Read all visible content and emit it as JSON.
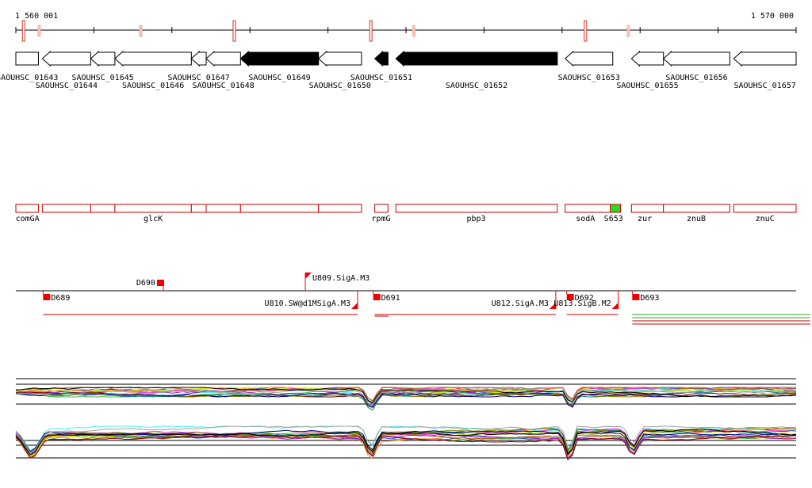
{
  "ruler": {
    "start_label": "1 560 001",
    "end_label": "1 570 000",
    "start": 1560001,
    "end": 1570000,
    "marks": [
      1560100,
      1560300,
      1561600,
      1562800,
      1564550,
      1565100,
      1567300,
      1567850
    ]
  },
  "locus_tags": [
    {
      "id": "SAOUHSC_01643",
      "label": "SAOUHSC_01643",
      "start": 1560001,
      "end": 1560290,
      "dir": "none",
      "fill": "#ffffff"
    },
    {
      "id": "SAOUHSC_01644",
      "label": "SAOUHSC_01644",
      "start": 1560340,
      "end": 1560960,
      "dir": "left",
      "fill": "#ffffff"
    },
    {
      "id": "SAOUHSC_01645",
      "label": "SAOUHSC_01645",
      "start": 1560960,
      "end": 1561270,
      "dir": "left",
      "fill": "#ffffff"
    },
    {
      "id": "SAOUHSC_01646",
      "label": "SAOUHSC_01646",
      "start": 1561270,
      "end": 1562250,
      "dir": "left",
      "fill": "#ffffff"
    },
    {
      "id": "SAOUHSC_01647",
      "label": "SAOUHSC_01647",
      "start": 1562250,
      "end": 1562440,
      "dir": "left",
      "fill": "#ffffff"
    },
    {
      "id": "SAOUHSC_01648",
      "label": "SAOUHSC_01648",
      "start": 1562440,
      "end": 1562880,
      "dir": "left",
      "fill": "#ffffff"
    },
    {
      "id": "SAOUHSC_01649",
      "label": "SAOUHSC_01649",
      "start": 1562880,
      "end": 1563880,
      "dir": "left",
      "fill": "#000000"
    },
    {
      "id": "SAOUHSC_01650",
      "label": "SAOUHSC_01650",
      "start": 1563880,
      "end": 1564430,
      "dir": "left",
      "fill": "#ffffff"
    },
    {
      "id": "SAOUHSC_01651",
      "label": "SAOUHSC_01651",
      "start": 1564600,
      "end": 1564770,
      "dir": "left",
      "fill": "#000000"
    },
    {
      "id": "SAOUHSC_01652",
      "label": "SAOUHSC_01652",
      "start": 1564870,
      "end": 1566940,
      "dir": "left",
      "fill": "#000000"
    },
    {
      "id": "SAOUHSC_01653",
      "label": "SAOUHSC_01653",
      "start": 1567040,
      "end": 1567650,
      "dir": "left",
      "fill": "#ffffff"
    },
    {
      "id": "SAOUHSC_01655",
      "label": "SAOUHSC_01655",
      "start": 1567890,
      "end": 1568300,
      "dir": "left",
      "fill": "#ffffff"
    },
    {
      "id": "SAOUHSC_01656",
      "label": "SAOUHSC_01656",
      "start": 1568300,
      "end": 1569150,
      "dir": "left",
      "fill": "#ffffff"
    },
    {
      "id": "SAOUHSC_01657",
      "label": "SAOUHSC_01657",
      "start": 1569200,
      "end": 1570000,
      "dir": "left",
      "fill": "#ffffff"
    }
  ],
  "genes": [
    {
      "label": "comGA",
      "start": 1560001,
      "end": 1560290,
      "fill": "#ffffff",
      "label_at": 1560150
    },
    {
      "label": "",
      "start": 1560340,
      "end": 1560960,
      "fill": "#ffffff"
    },
    {
      "label": "",
      "start": 1560960,
      "end": 1561270,
      "fill": "#ffffff"
    },
    {
      "label": "glcK",
      "start": 1561270,
      "end": 1562250,
      "fill": "#ffffff",
      "label_at": 1561760
    },
    {
      "label": "",
      "start": 1562250,
      "end": 1562440,
      "fill": "#ffffff"
    },
    {
      "label": "",
      "start": 1562440,
      "end": 1562880,
      "fill": "#ffffff"
    },
    {
      "label": "",
      "start": 1562880,
      "end": 1563880,
      "fill": "#ffffff"
    },
    {
      "label": "",
      "start": 1563880,
      "end": 1564430,
      "fill": "#ffffff"
    },
    {
      "label": "rpmG",
      "start": 1564600,
      "end": 1564770,
      "fill": "#ffffff",
      "label_at": 1564680
    },
    {
      "label": "pbp3",
      "start": 1564870,
      "end": 1566940,
      "fill": "#ffffff",
      "label_at": 1565900
    },
    {
      "label": "sodA",
      "start": 1567040,
      "end": 1567620,
      "fill": "#ffffff",
      "label_at": 1567300
    },
    {
      "label": "S653",
      "start": 1567620,
      "end": 1567750,
      "fill": "#22dd22",
      "label_at": 1567660
    },
    {
      "label": "zur",
      "start": 1567890,
      "end": 1568300,
      "fill": "#ffffff",
      "label_at": 1568060
    },
    {
      "label": "znuB",
      "start": 1568300,
      "end": 1569150,
      "fill": "#ffffff",
      "label_at": 1568720
    },
    {
      "label": "znuC",
      "start": 1569200,
      "end": 1570000,
      "fill": "#ffffff",
      "label_at": 1569600
    }
  ],
  "features": [
    {
      "label": "D689",
      "pos": 1560350,
      "side": "below",
      "type": "block"
    },
    {
      "label": "D690",
      "pos": 1561850,
      "side": "above",
      "type": "block"
    },
    {
      "label": "U809.SigA.M3",
      "pos": 1563710,
      "side": "above",
      "type": "flag"
    },
    {
      "label": "U810.SW@d1MSigA.M3",
      "pos": 1564380,
      "side": "below",
      "type": "flag"
    },
    {
      "label": "D691",
      "pos": 1564580,
      "side": "below",
      "type": "block"
    },
    {
      "label": "U812.SigA.M3",
      "pos": 1566920,
      "side": "below",
      "type": "flag"
    },
    {
      "label": "D692",
      "pos": 1567060,
      "side": "below",
      "type": "block"
    },
    {
      "label": "U813.SigB.M2",
      "pos": 1567720,
      "side": "below",
      "type": "flag"
    },
    {
      "label": "D693",
      "pos": 1567900,
      "side": "below",
      "type": "block"
    }
  ],
  "transcripts": [
    {
      "start": 1560350,
      "end": 1564380,
      "color": "#cc0000"
    },
    {
      "start": 1564600,
      "end": 1564780,
      "color": "#cc0000"
    },
    {
      "start": 1564600,
      "end": 1566920,
      "color": "#cc0000"
    },
    {
      "start": 1567060,
      "end": 1567720,
      "color": "#cc0000"
    },
    {
      "start": 1567900,
      "end": 1570180,
      "color": "#22aa22"
    },
    {
      "start": 1567900,
      "end": 1570180,
      "color": "#22aa22"
    },
    {
      "start": 1567900,
      "end": 1570180,
      "color": "#cc0000"
    },
    {
      "start": 1567900,
      "end": 1570180,
      "color": "#cc0000"
    }
  ],
  "expression_palette": [
    "#e6194b",
    "#3cb44b",
    "#ffe119",
    "#4363d8",
    "#f58231",
    "#911eb4",
    "#46f0f0",
    "#f032e6",
    "#bcf60c",
    "#008080",
    "#9a6324",
    "#800000",
    "#808000",
    "#000075",
    "#a0a0a0",
    "#000000"
  ]
}
